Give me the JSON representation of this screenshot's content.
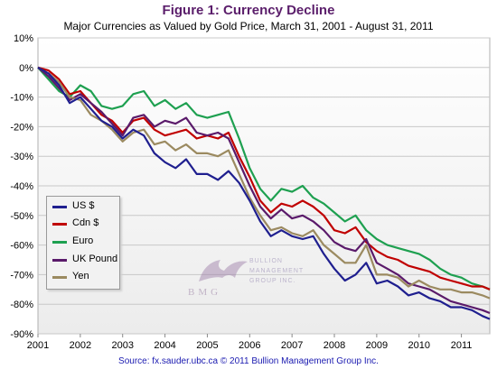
{
  "title": "Figure 1: Currency Decline",
  "subtitle": "Major Currencies as Valued by Gold Price, March 31, 2001 - August 31, 2011",
  "source": "Source: fx.sauder.ubc.ca © 2011 Bullion Management Group Inc.",
  "watermark": {
    "name": "BMG",
    "text_line1": "BULLION",
    "text_line2": "MANAGEMENT",
    "text_line3": "GROUP INC."
  },
  "chart_data": {
    "type": "line",
    "title": "Figure 1: Currency Decline",
    "subtitle": "Major Currencies as Valued by Gold Price, March 31, 2001 - August 31, 2011",
    "xlabel": "",
    "ylabel": "",
    "xlim": [
      2001,
      2011.67
    ],
    "ylim": [
      -90,
      10
    ],
    "x_ticks": [
      "2001",
      "2002",
      "2003",
      "2004",
      "2005",
      "2006",
      "2007",
      "2008",
      "2009",
      "2010",
      "2011"
    ],
    "y_ticks": [
      "10%",
      "0%",
      "-10%",
      "-20%",
      "-30%",
      "-40%",
      "-50%",
      "-60%",
      "-70%",
      "-80%",
      "-90%"
    ],
    "grid": true,
    "legend_position": "lower-left",
    "series": [
      {
        "name": "US $",
        "color": "#1f1f8f",
        "points": [
          [
            2001.0,
            0
          ],
          [
            2001.25,
            -2
          ],
          [
            2001.5,
            -6
          ],
          [
            2001.75,
            -12
          ],
          [
            2002.0,
            -10
          ],
          [
            2002.25,
            -14
          ],
          [
            2002.5,
            -18
          ],
          [
            2002.75,
            -20
          ],
          [
            2003.0,
            -24
          ],
          [
            2003.25,
            -21
          ],
          [
            2003.5,
            -23
          ],
          [
            2003.75,
            -29
          ],
          [
            2004.0,
            -32
          ],
          [
            2004.25,
            -34
          ],
          [
            2004.5,
            -31
          ],
          [
            2004.75,
            -36
          ],
          [
            2005.0,
            -36
          ],
          [
            2005.25,
            -38
          ],
          [
            2005.5,
            -35
          ],
          [
            2005.75,
            -39
          ],
          [
            2006.0,
            -45
          ],
          [
            2006.25,
            -52
          ],
          [
            2006.5,
            -57
          ],
          [
            2006.75,
            -55
          ],
          [
            2007.0,
            -57
          ],
          [
            2007.25,
            -58
          ],
          [
            2007.5,
            -57
          ],
          [
            2007.75,
            -63
          ],
          [
            2008.0,
            -68
          ],
          [
            2008.25,
            -72
          ],
          [
            2008.5,
            -70
          ],
          [
            2008.75,
            -66
          ],
          [
            2009.0,
            -73
          ],
          [
            2009.25,
            -72
          ],
          [
            2009.5,
            -74
          ],
          [
            2009.75,
            -77
          ],
          [
            2010.0,
            -76
          ],
          [
            2010.25,
            -78
          ],
          [
            2010.5,
            -79
          ],
          [
            2010.75,
            -81
          ],
          [
            2011.0,
            -81
          ],
          [
            2011.25,
            -82
          ],
          [
            2011.5,
            -84
          ],
          [
            2011.67,
            -85
          ]
        ]
      },
      {
        "name": "Cdn $",
        "color": "#c00000",
        "points": [
          [
            2001.0,
            0
          ],
          [
            2001.25,
            -1
          ],
          [
            2001.5,
            -4
          ],
          [
            2001.75,
            -9
          ],
          [
            2002.0,
            -8
          ],
          [
            2002.25,
            -12
          ],
          [
            2002.5,
            -16
          ],
          [
            2002.75,
            -18
          ],
          [
            2003.0,
            -22
          ],
          [
            2003.25,
            -18
          ],
          [
            2003.5,
            -17
          ],
          [
            2003.75,
            -21
          ],
          [
            2004.0,
            -23
          ],
          [
            2004.25,
            -22
          ],
          [
            2004.5,
            -21
          ],
          [
            2004.75,
            -24
          ],
          [
            2005.0,
            -23
          ],
          [
            2005.25,
            -24
          ],
          [
            2005.5,
            -22
          ],
          [
            2005.75,
            -30
          ],
          [
            2006.0,
            -37
          ],
          [
            2006.25,
            -45
          ],
          [
            2006.5,
            -49
          ],
          [
            2006.75,
            -46
          ],
          [
            2007.0,
            -47
          ],
          [
            2007.25,
            -45
          ],
          [
            2007.5,
            -47
          ],
          [
            2007.75,
            -50
          ],
          [
            2008.0,
            -55
          ],
          [
            2008.25,
            -56
          ],
          [
            2008.5,
            -54
          ],
          [
            2008.75,
            -59
          ],
          [
            2009.0,
            -62
          ],
          [
            2009.25,
            -64
          ],
          [
            2009.5,
            -65
          ],
          [
            2009.75,
            -67
          ],
          [
            2010.0,
            -68
          ],
          [
            2010.25,
            -69
          ],
          [
            2010.5,
            -71
          ],
          [
            2010.75,
            -72
          ],
          [
            2011.0,
            -73
          ],
          [
            2011.25,
            -74
          ],
          [
            2011.5,
            -74
          ],
          [
            2011.67,
            -75
          ]
        ]
      },
      {
        "name": "Euro",
        "color": "#1ea050",
        "points": [
          [
            2001.0,
            0
          ],
          [
            2001.25,
            -4
          ],
          [
            2001.5,
            -8
          ],
          [
            2001.75,
            -10
          ],
          [
            2002.0,
            -6
          ],
          [
            2002.25,
            -8
          ],
          [
            2002.5,
            -13
          ],
          [
            2002.75,
            -14
          ],
          [
            2003.0,
            -13
          ],
          [
            2003.25,
            -9
          ],
          [
            2003.5,
            -8
          ],
          [
            2003.75,
            -13
          ],
          [
            2004.0,
            -11
          ],
          [
            2004.25,
            -14
          ],
          [
            2004.5,
            -12
          ],
          [
            2004.75,
            -16
          ],
          [
            2005.0,
            -17
          ],
          [
            2005.25,
            -16
          ],
          [
            2005.5,
            -15
          ],
          [
            2005.75,
            -24
          ],
          [
            2006.0,
            -34
          ],
          [
            2006.25,
            -41
          ],
          [
            2006.5,
            -45
          ],
          [
            2006.75,
            -41
          ],
          [
            2007.0,
            -42
          ],
          [
            2007.25,
            -40
          ],
          [
            2007.5,
            -44
          ],
          [
            2007.75,
            -46
          ],
          [
            2008.0,
            -49
          ],
          [
            2008.25,
            -52
          ],
          [
            2008.5,
            -50
          ],
          [
            2008.75,
            -55
          ],
          [
            2009.0,
            -58
          ],
          [
            2009.25,
            -60
          ],
          [
            2009.5,
            -61
          ],
          [
            2009.75,
            -62
          ],
          [
            2010.0,
            -63
          ],
          [
            2010.25,
            -65
          ],
          [
            2010.5,
            -68
          ],
          [
            2010.75,
            -70
          ],
          [
            2011.0,
            -71
          ],
          [
            2011.25,
            -73
          ],
          [
            2011.5,
            -74
          ],
          [
            2011.67,
            -75
          ]
        ]
      },
      {
        "name": "UK Pound",
        "color": "#5a1a6a",
        "points": [
          [
            2001.0,
            0
          ],
          [
            2001.25,
            -3
          ],
          [
            2001.5,
            -7
          ],
          [
            2001.75,
            -11
          ],
          [
            2002.0,
            -9
          ],
          [
            2002.25,
            -12
          ],
          [
            2002.5,
            -15
          ],
          [
            2002.75,
            -19
          ],
          [
            2003.0,
            -23
          ],
          [
            2003.25,
            -17
          ],
          [
            2003.5,
            -16
          ],
          [
            2003.75,
            -20
          ],
          [
            2004.0,
            -18
          ],
          [
            2004.25,
            -19
          ],
          [
            2004.5,
            -17
          ],
          [
            2004.75,
            -22
          ],
          [
            2005.0,
            -23
          ],
          [
            2005.25,
            -22
          ],
          [
            2005.5,
            -24
          ],
          [
            2005.75,
            -32
          ],
          [
            2006.0,
            -40
          ],
          [
            2006.25,
            -47
          ],
          [
            2006.5,
            -51
          ],
          [
            2006.75,
            -48
          ],
          [
            2007.0,
            -51
          ],
          [
            2007.25,
            -50
          ],
          [
            2007.5,
            -52
          ],
          [
            2007.75,
            -55
          ],
          [
            2008.0,
            -59
          ],
          [
            2008.25,
            -61
          ],
          [
            2008.5,
            -62
          ],
          [
            2008.75,
            -58
          ],
          [
            2009.0,
            -66
          ],
          [
            2009.25,
            -68
          ],
          [
            2009.5,
            -70
          ],
          [
            2009.75,
            -73
          ],
          [
            2010.0,
            -74
          ],
          [
            2010.25,
            -75
          ],
          [
            2010.5,
            -77
          ],
          [
            2010.75,
            -79
          ],
          [
            2011.0,
            -80
          ],
          [
            2011.25,
            -81
          ],
          [
            2011.5,
            -82
          ],
          [
            2011.67,
            -83
          ]
        ]
      },
      {
        "name": "Yen",
        "color": "#9b8a60",
        "points": [
          [
            2001.0,
            0
          ],
          [
            2001.25,
            -2
          ],
          [
            2001.5,
            -5
          ],
          [
            2001.75,
            -10
          ],
          [
            2002.0,
            -11
          ],
          [
            2002.25,
            -16
          ],
          [
            2002.5,
            -18
          ],
          [
            2002.75,
            -21
          ],
          [
            2003.0,
            -25
          ],
          [
            2003.25,
            -22
          ],
          [
            2003.5,
            -21
          ],
          [
            2003.75,
            -26
          ],
          [
            2004.0,
            -25
          ],
          [
            2004.25,
            -28
          ],
          [
            2004.5,
            -26
          ],
          [
            2004.75,
            -29
          ],
          [
            2005.0,
            -29
          ],
          [
            2005.25,
            -30
          ],
          [
            2005.5,
            -28
          ],
          [
            2005.75,
            -36
          ],
          [
            2006.0,
            -44
          ],
          [
            2006.25,
            -50
          ],
          [
            2006.5,
            -55
          ],
          [
            2006.75,
            -54
          ],
          [
            2007.0,
            -56
          ],
          [
            2007.25,
            -57
          ],
          [
            2007.5,
            -55
          ],
          [
            2007.75,
            -60
          ],
          [
            2008.0,
            -63
          ],
          [
            2008.25,
            -66
          ],
          [
            2008.5,
            -66
          ],
          [
            2008.75,
            -60
          ],
          [
            2009.0,
            -70
          ],
          [
            2009.25,
            -70
          ],
          [
            2009.5,
            -71
          ],
          [
            2009.75,
            -74
          ],
          [
            2010.0,
            -72
          ],
          [
            2010.25,
            -74
          ],
          [
            2010.5,
            -75
          ],
          [
            2010.75,
            -75
          ],
          [
            2011.0,
            -76
          ],
          [
            2011.25,
            -76
          ],
          [
            2011.5,
            -77
          ],
          [
            2011.67,
            -78
          ]
        ]
      }
    ]
  }
}
